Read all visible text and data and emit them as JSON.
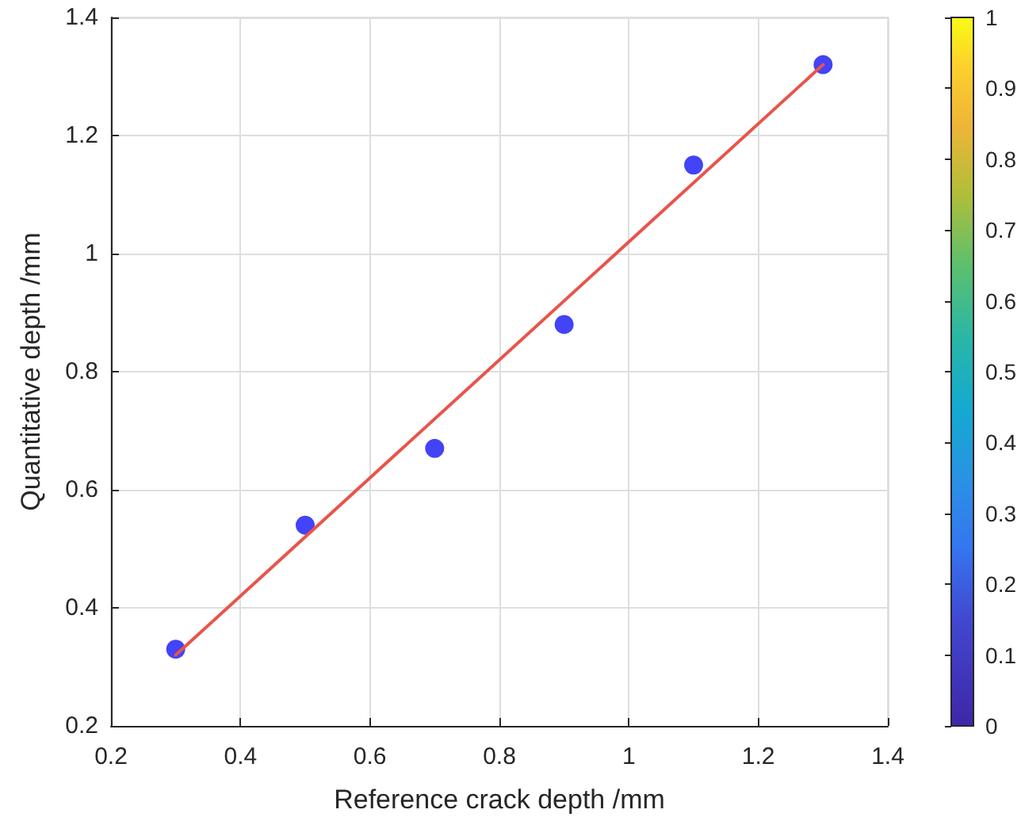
{
  "chart_data": {
    "type": "scatter",
    "xlabel": "Reference crack depth /mm",
    "ylabel": "Quantitative depth /mm",
    "series": [
      {
        "color": "#1414f5",
        "x": [
          0.3,
          0.5,
          0.7,
          0.9,
          1.1,
          1.3
        ],
        "values": [
          0.33,
          0.54,
          0.67,
          0.88,
          1.15,
          1.32
        ],
        "marker": "circle"
      },
      {
        "type": "line",
        "color": "#e8544a",
        "x": [
          0.3,
          1.3
        ],
        "values": [
          0.32,
          1.32
        ],
        "marker": "none",
        "line_style": "solid"
      }
    ],
    "xlim": [
      0.2,
      1.4
    ],
    "xticks": [
      0.2,
      0.4,
      0.6,
      0.8,
      1,
      1.2,
      1.4
    ],
    "ylim": [
      0.2,
      1.4
    ],
    "yticks": [
      0.2,
      0.4,
      0.6,
      0.8,
      1,
      1.2,
      1.4
    ],
    "clim": [
      0,
      1
    ],
    "cticks": [
      0,
      0.1,
      0.2,
      0.3,
      0.4,
      0.5,
      0.6,
      0.7,
      0.8,
      0.9,
      1
    ],
    "grid": true
  }
}
